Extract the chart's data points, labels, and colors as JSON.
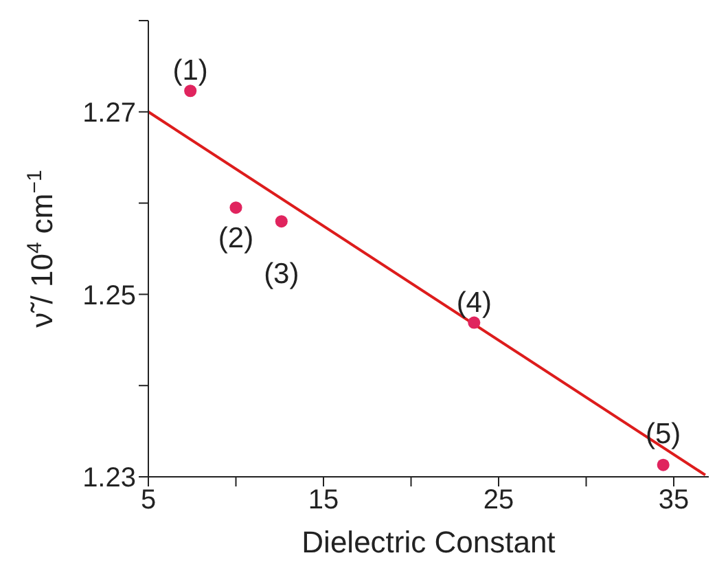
{
  "chart_data": {
    "type": "scatter",
    "xlabel": "Dielectric Constant",
    "ylabel": "ν̃ / 10$^{4}$ cm$^{−1}$",
    "xlim": [
      5,
      37
    ],
    "ylim": [
      1.23,
      1.28
    ],
    "xticks": [
      5,
      {
        "value": 10,
        "label": null
      },
      15,
      {
        "value": 20,
        "label": null
      },
      25,
      {
        "value": 30,
        "label": null
      },
      35
    ],
    "yticks": [
      "1.23",
      {
        "value": 1.24,
        "label": null
      },
      1.25,
      {
        "value": 1.26,
        "label": null
      },
      1.27,
      {
        "value": 1.28,
        "label": null
      }
    ],
    "grid": false,
    "marker": "circle",
    "series": [
      {
        "color": "#e0245e",
        "x": [
          7.4,
          10.0,
          12.6,
          23.6,
          34.4
        ],
        "values": [
          1.2723,
          1.2595,
          1.258,
          1.2469,
          1.2313
        ]
      },
      {
        "type": "line",
        "color": "#dd1c1c",
        "x": [
          5,
          36.8
        ],
        "values": [
          1.27,
          1.2302
        ],
        "marker": "none",
        "line_style": "solid"
      }
    ],
    "annotations": [
      {
        "text": "(1)",
        "x": 7.4,
        "y": 1.2723
      },
      {
        "text": "(2)",
        "x": 10.0,
        "y": 1.2595
      },
      {
        "text": "(3)",
        "x": 12.6,
        "y": 1.258
      },
      {
        "text": "(4)",
        "x": 23.6,
        "y": 1.2469
      },
      {
        "text": "(5)",
        "x": 34.4,
        "y": 1.2313
      }
    ]
  }
}
